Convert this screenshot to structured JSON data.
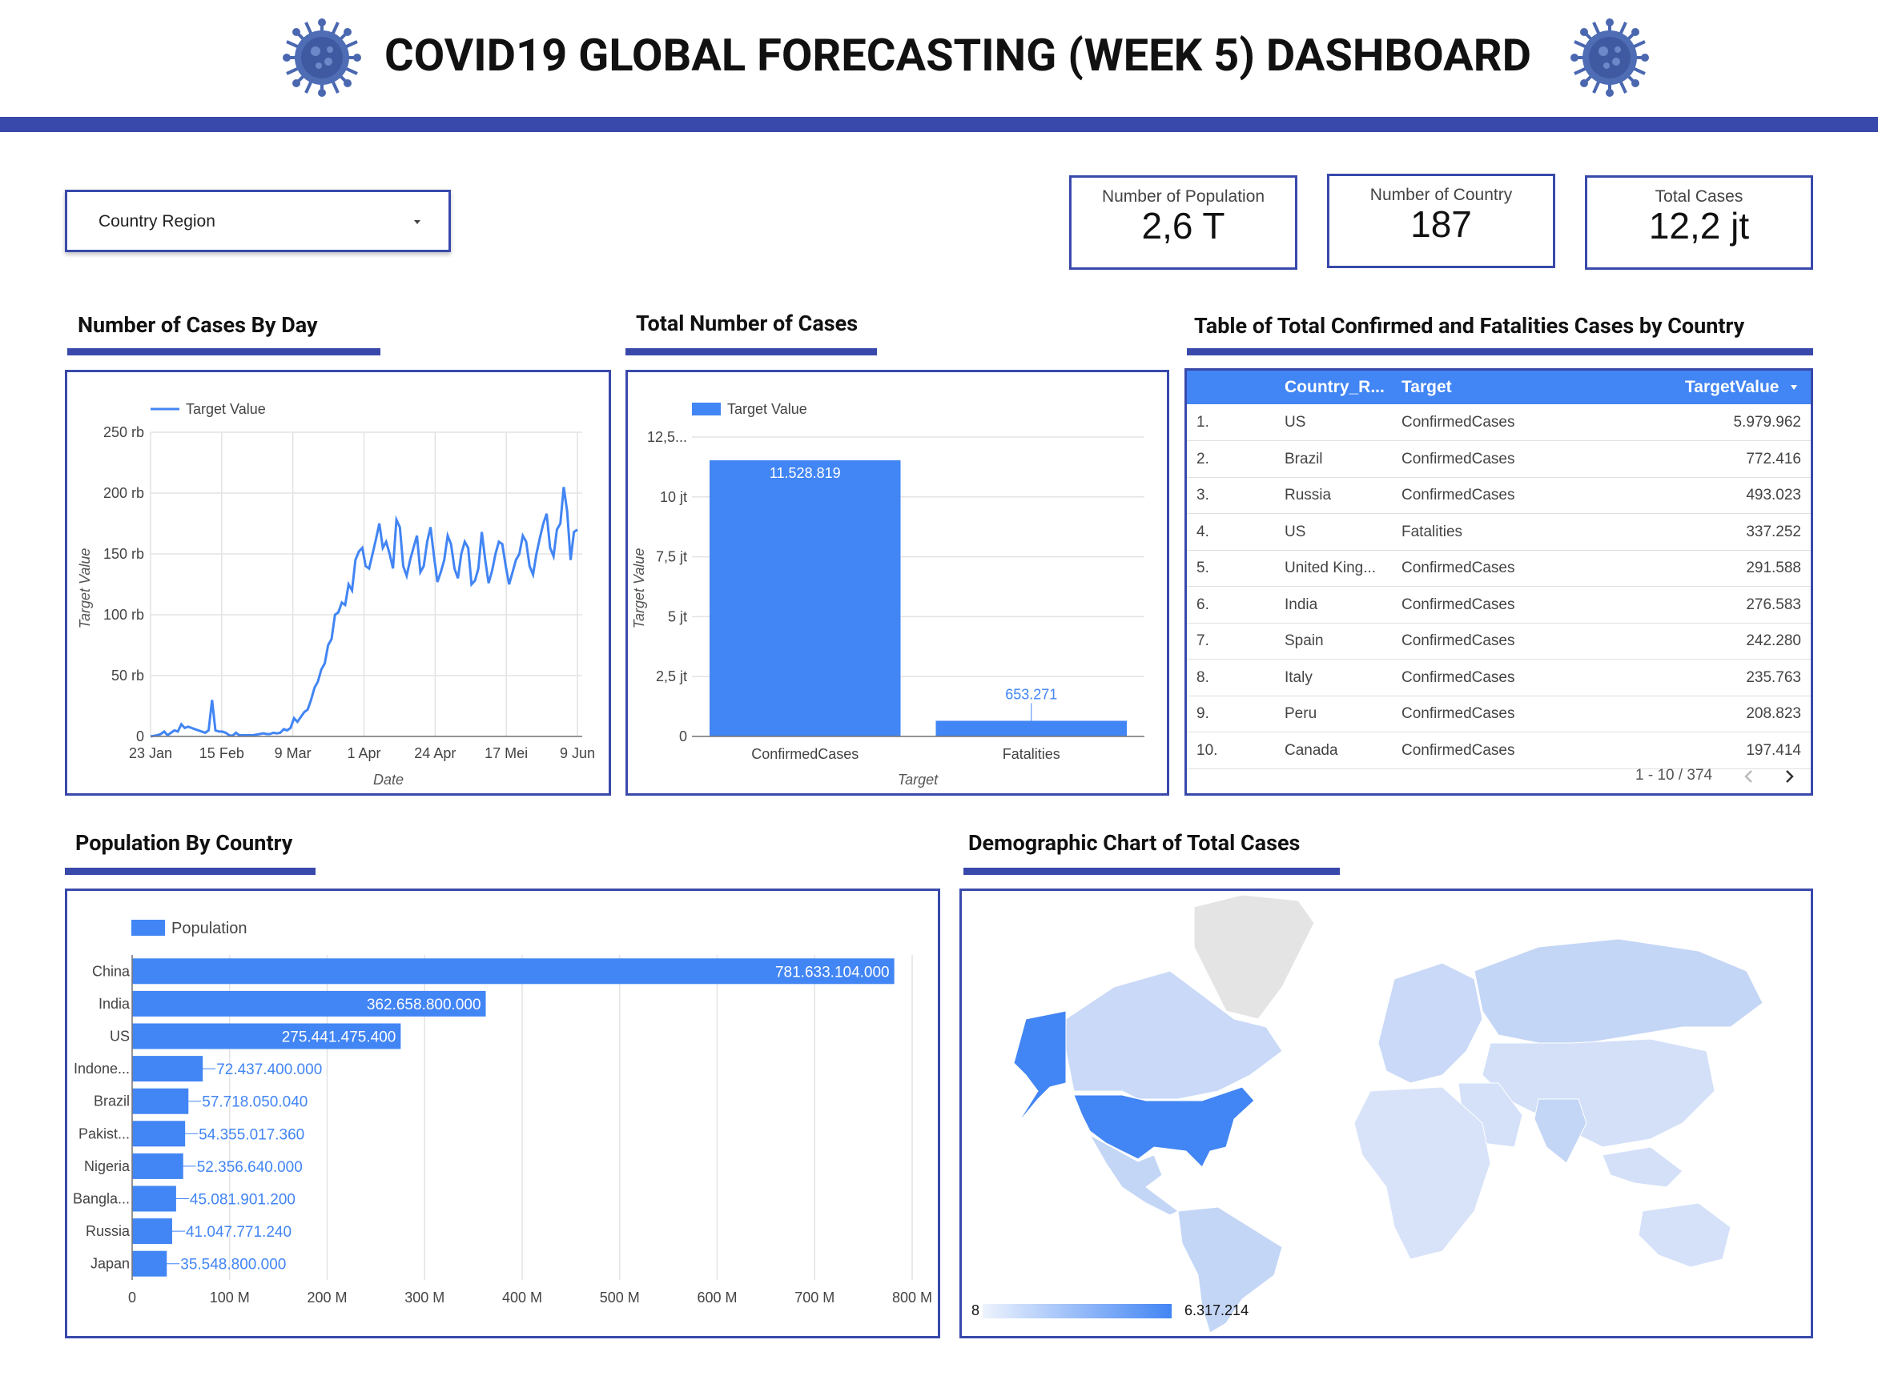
{
  "header": {
    "title": "COVID19 GLOBAL FORECASTING (WEEK 5) DASHBOARD",
    "accent_color": "#3949ab",
    "icon": "virus-icon"
  },
  "filter": {
    "label": "Country Region",
    "icon": "dropdown-arrow-icon"
  },
  "scorecards": [
    {
      "label": "Number of Population",
      "value": "2,6 T"
    },
    {
      "label": "Number of Country",
      "value": "187"
    },
    {
      "label": "Total Cases",
      "value": "12,2 jt"
    }
  ],
  "sections": {
    "cases_by_day": "Number of Cases By Day",
    "total_cases": "Total Number of Cases",
    "table": "Table of Total Confirmed and Fatalities Cases by Country",
    "population": "Population By Country",
    "map": "Demographic Chart of Total Cases"
  },
  "chart_data": [
    {
      "type": "line",
      "legend": [
        "Target Value"
      ],
      "xlabel": "Date",
      "ylabel": "Target Value",
      "x_ticks": [
        "23 Jan",
        "15 Feb",
        "9 Mar",
        "1 Apr",
        "24 Apr",
        "17 Mei",
        "9 Jun"
      ],
      "y_ticks": [
        "0",
        "50 rb",
        "100 rb",
        "150 rb",
        "200 rb",
        "250 rb"
      ],
      "ylim": [
        0,
        250000
      ],
      "series": [
        {
          "name": "Target Value",
          "color": "#4285f4",
          "values": [
            0,
            500,
            1000,
            2000,
            4000,
            1000,
            3000,
            5000,
            4000,
            10000,
            7000,
            8000,
            7000,
            6000,
            5000,
            4000,
            3000,
            5000,
            30000,
            5000,
            4000,
            4000,
            3000,
            1000,
            500,
            3000,
            1000,
            1000,
            1000,
            1000,
            1000,
            1500,
            2000,
            2500,
            2000,
            2000,
            3000,
            2500,
            3000,
            6000,
            5000,
            7000,
            15000,
            12000,
            16000,
            20000,
            22000,
            30000,
            40000,
            45000,
            55000,
            60000,
            75000,
            80000,
            100000,
            102000,
            110000,
            108000,
            125000,
            120000,
            145000,
            152000,
            155000,
            140000,
            138000,
            150000,
            162000,
            175000,
            155000,
            160000,
            150000,
            138000,
            178000,
            172000,
            140000,
            132000,
            145000,
            155000,
            165000,
            135000,
            140000,
            160000,
            172000,
            148000,
            127000,
            135000,
            145000,
            165000,
            158000,
            138000,
            130000,
            150000,
            160000,
            155000,
            125000,
            128000,
            138000,
            168000,
            145000,
            126000,
            136000,
            150000,
            160000,
            158000,
            140000,
            125000,
            135000,
            145000,
            150000,
            165000,
            160000,
            140000,
            133000,
            150000,
            163000,
            175000,
            183000,
            155000,
            148000,
            170000,
            175000,
            205000,
            185000,
            145000,
            168000,
            170000
          ]
        }
      ]
    },
    {
      "type": "bar",
      "legend": [
        "Target Value"
      ],
      "xlabel": "Target",
      "ylabel": "Target Value",
      "categories": [
        "ConfirmedCases",
        "Fatalities"
      ],
      "values": [
        11528819,
        653271
      ],
      "value_labels": [
        "11.528.819",
        "653.271"
      ],
      "y_ticks": [
        "0",
        "2,5 jt",
        "5 jt",
        "7,5 jt",
        "10 jt",
        "12,5..."
      ],
      "ylim": [
        0,
        12500000
      ],
      "color": "#4285f4"
    },
    {
      "type": "table",
      "columns": [
        "Country_R...",
        "Target",
        "TargetValue"
      ],
      "sort_icon": "sort-desc-icon",
      "rows": [
        [
          "1.",
          "US",
          "ConfirmedCases",
          "5.979.962"
        ],
        [
          "2.",
          "Brazil",
          "ConfirmedCases",
          "772.416"
        ],
        [
          "3.",
          "Russia",
          "ConfirmedCases",
          "493.023"
        ],
        [
          "4.",
          "US",
          "Fatalities",
          "337.252"
        ],
        [
          "5.",
          "United King...",
          "ConfirmedCases",
          "291.588"
        ],
        [
          "6.",
          "India",
          "ConfirmedCases",
          "276.583"
        ],
        [
          "7.",
          "Spain",
          "ConfirmedCases",
          "242.280"
        ],
        [
          "8.",
          "Italy",
          "ConfirmedCases",
          "235.763"
        ],
        [
          "9.",
          "Peru",
          "ConfirmedCases",
          "208.823"
        ],
        [
          "10.",
          "Canada",
          "ConfirmedCases",
          "197.414"
        ]
      ],
      "pagination": "1 - 10 / 374",
      "header_color": "#4285f4"
    },
    {
      "type": "bar",
      "orientation": "horizontal",
      "legend": [
        "Population"
      ],
      "categories": [
        "China",
        "India",
        "US",
        "Indone...",
        "Brazil",
        "Pakist...",
        "Nigeria",
        "Bangla...",
        "Russia",
        "Japan"
      ],
      "values": [
        781633104000,
        362658800000,
        275441475400,
        72437400000,
        57718050040,
        54355017360,
        52356640000,
        45081901200,
        41047771240,
        35548800000
      ],
      "value_labels": [
        "781.633.104.000",
        "362.658.800.000",
        "275.441.475.400",
        "72.437.400.000",
        "57.718.050.040",
        "54.355.017.360",
        "52.356.640.000",
        "45.081.901.200",
        "41.047.771.240",
        "35.548.800.000"
      ],
      "x_ticks": [
        "0",
        "100 M",
        "200 M",
        "300 M",
        "400 M",
        "500 M",
        "600 M",
        "700 M",
        "800 M"
      ],
      "xlim": [
        0,
        800000000000
      ],
      "color": "#4285f4"
    }
  ],
  "map": {
    "legend_min": "8",
    "legend_max": "6.317.214",
    "highlight_color": "#4285f4",
    "base_color": "#cfdcf6",
    "no_data_color": "#e8e8e8"
  }
}
